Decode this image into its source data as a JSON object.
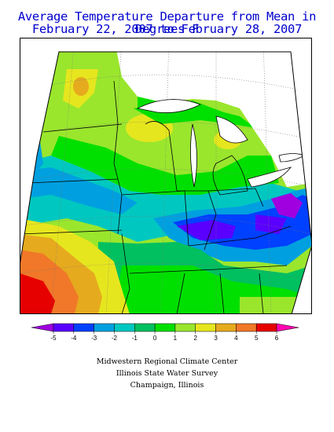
{
  "title": "Average Temperature Departure from Mean in Degrees F",
  "subtitle": "February 22, 2007 to February 28, 2007",
  "legend": {
    "ticks": [
      "-5",
      "-4",
      "-3",
      "-2",
      "-1",
      "0",
      "1",
      "2",
      "3",
      "4",
      "5",
      "6"
    ],
    "colors": [
      "#a000e0",
      "#5a00ff",
      "#0040ff",
      "#00a0e0",
      "#00c8c0",
      "#00c060",
      "#00e000",
      "#9ae62d",
      "#e6e61e",
      "#e6aa1e",
      "#f07828",
      "#e60000",
      "#ff00b0"
    ]
  },
  "credits": {
    "line1": "Midwestern Regional Climate Center",
    "line2": "Illinois State Water Survey",
    "line3": "Champaign, Illinois"
  }
}
